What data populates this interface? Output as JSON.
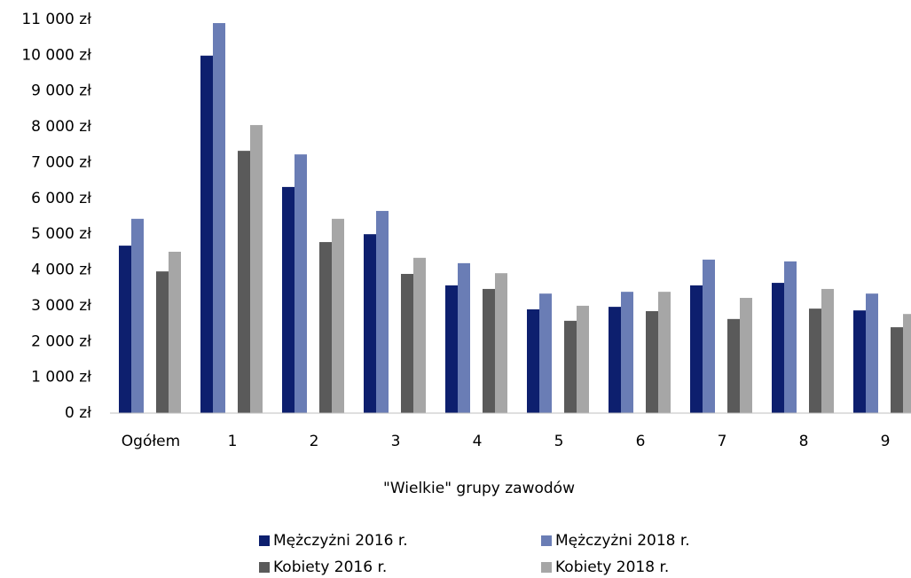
{
  "chart_data": {
    "type": "bar",
    "x_label": "\"Wielkie\" grupy zawodów",
    "categories": [
      "Ogółem",
      "1",
      "2",
      "3",
      "4",
      "5",
      "6",
      "7",
      "8",
      "9"
    ],
    "series": [
      {
        "name": "Mężczyżni 2016 r.",
        "color": "#0d1f6e",
        "values": [
          4680,
          9990,
          6320,
          5000,
          3570,
          2900,
          2970,
          3570,
          3640,
          2870
        ]
      },
      {
        "name": "Mężczyżni 2018 r.",
        "color": "#6a7db5",
        "values": [
          5430,
          10900,
          7230,
          5650,
          4190,
          3340,
          3390,
          4290,
          4240,
          3340
        ]
      },
      {
        "name": "Kobiety 2016 r.",
        "color": "#5a5a5a",
        "values": [
          3960,
          7330,
          4780,
          3890,
          3470,
          2580,
          2850,
          2630,
          2920,
          2400
        ]
      },
      {
        "name": "Kobiety 2018 r.",
        "color": "#a6a6a6",
        "values": [
          4510,
          8050,
          5430,
          4340,
          3910,
          3000,
          3390,
          3220,
          3470,
          2770
        ]
      }
    ],
    "ylim": [
      0,
      11000
    ],
    "yticks": [
      {
        "value": 0,
        "label": "0 zł"
      },
      {
        "value": 1000,
        "label": "1 000 zł"
      },
      {
        "value": 2000,
        "label": "2 000 zł"
      },
      {
        "value": 3000,
        "label": "3 000 zł"
      },
      {
        "value": 4000,
        "label": "4 000 zł"
      },
      {
        "value": 5000,
        "label": "5 000 zł"
      },
      {
        "value": 6000,
        "label": "6 000 zł"
      },
      {
        "value": 7000,
        "label": "7 000 zł"
      },
      {
        "value": 8000,
        "label": "8 000 zł"
      },
      {
        "value": 9000,
        "label": "9 000 zł"
      },
      {
        "value": 10000,
        "label": "10 000 zł"
      },
      {
        "value": 11000,
        "label": "11 000 zł"
      }
    ],
    "grid": false
  }
}
